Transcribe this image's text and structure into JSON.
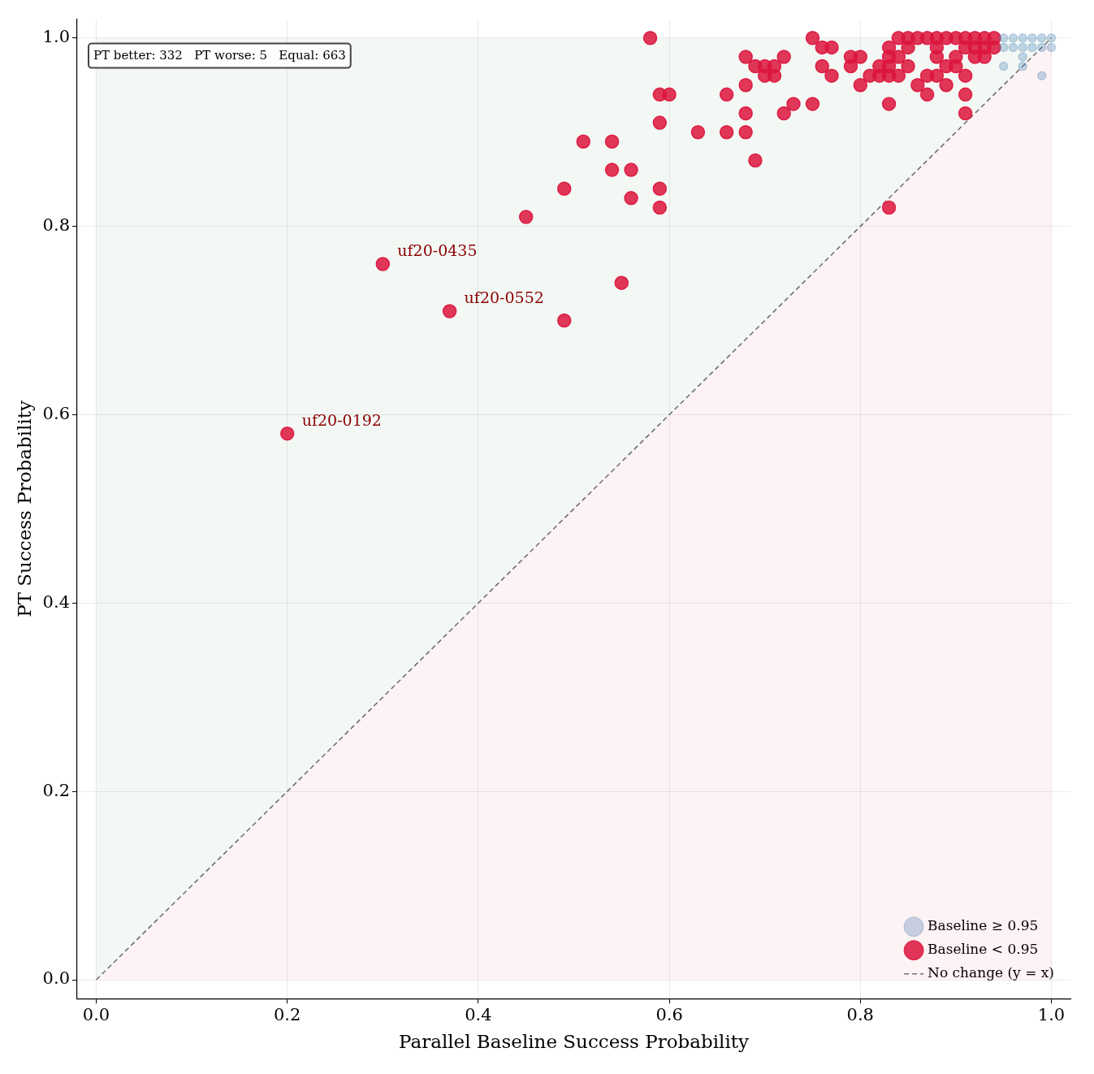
{
  "chart_data": {
    "type": "scatter",
    "xlabel": "Parallel Baseline Success Probability",
    "ylabel": "PT Success Probability",
    "xlim": [
      -0.02,
      1.02
    ],
    "ylim": [
      -0.02,
      1.02
    ],
    "xticks": [
      {
        "value": 0,
        "label": "0.0"
      },
      0.2,
      0.4,
      0.6,
      0.8,
      {
        "value": 1,
        "label": "1.0"
      }
    ],
    "yticks": [
      {
        "value": 0,
        "label": "0.0"
      },
      0.2,
      0.4,
      0.6,
      0.8,
      {
        "value": 1,
        "label": "1.0"
      }
    ],
    "grid": true,
    "legend": "bottom right",
    "marker": "circle",
    "series": [
      {
        "name": "Baseline ≥ 0.95",
        "color": "#4682b4",
        "x": [
          0.95,
          0.96,
          0.97,
          0.98,
          0.99,
          1.0,
          0.95,
          0.96,
          0.97,
          0.98,
          0.99,
          1.0,
          0.97,
          0.95,
          0.97,
          0.99
        ],
        "values": [
          1.0,
          1.0,
          1.0,
          1.0,
          1.0,
          1.0,
          0.99,
          0.99,
          0.99,
          0.99,
          0.99,
          0.99,
          0.98,
          0.97,
          0.97,
          0.96
        ]
      },
      {
        "name": "Baseline < 0.95",
        "color": "#dc143c",
        "x": [
          0.2,
          0.3,
          0.37,
          0.45,
          0.49,
          0.49,
          0.51,
          0.54,
          0.54,
          0.55,
          0.56,
          0.56,
          0.58,
          0.59,
          0.59,
          0.59,
          0.59,
          0.6,
          0.63,
          0.66,
          0.66,
          0.68,
          0.68,
          0.68,
          0.68,
          0.69,
          0.69,
          0.7,
          0.7,
          0.71,
          0.71,
          0.72,
          0.72,
          0.73,
          0.75,
          0.75,
          0.76,
          0.76,
          0.77,
          0.77,
          0.79,
          0.79,
          0.8,
          0.8,
          0.81,
          0.82,
          0.82,
          0.83,
          0.83,
          0.83,
          0.83,
          0.83,
          0.83,
          0.84,
          0.84,
          0.84,
          0.85,
          0.85,
          0.85,
          0.86,
          0.86,
          0.87,
          0.87,
          0.87,
          0.88,
          0.88,
          0.88,
          0.88,
          0.89,
          0.89,
          0.89,
          0.9,
          0.9,
          0.9,
          0.91,
          0.91,
          0.91,
          0.91,
          0.91,
          0.92,
          0.92,
          0.92,
          0.93,
          0.93,
          0.93,
          0.94,
          0.94
        ],
        "values": [
          0.58,
          0.76,
          0.71,
          0.81,
          0.84,
          0.7,
          0.89,
          0.89,
          0.86,
          0.74,
          0.86,
          0.83,
          1.0,
          0.94,
          0.91,
          0.84,
          0.82,
          0.94,
          0.9,
          0.94,
          0.9,
          0.98,
          0.95,
          0.92,
          0.9,
          0.97,
          0.87,
          0.97,
          0.96,
          0.97,
          0.96,
          0.98,
          0.92,
          0.93,
          1.0,
          0.93,
          0.99,
          0.97,
          0.99,
          0.96,
          0.98,
          0.97,
          0.98,
          0.95,
          0.96,
          0.97,
          0.96,
          0.99,
          0.98,
          0.97,
          0.96,
          0.93,
          0.82,
          1.0,
          0.98,
          0.96,
          1.0,
          0.99,
          0.97,
          1.0,
          0.95,
          1.0,
          0.96,
          0.94,
          1.0,
          0.99,
          0.98,
          0.96,
          1.0,
          0.97,
          0.95,
          1.0,
          0.98,
          0.97,
          1.0,
          0.99,
          0.96,
          0.94,
          0.92,
          1.0,
          0.99,
          0.98,
          1.0,
          0.99,
          0.98,
          1.0,
          0.99
        ]
      },
      {
        "name": "No change (y = x)",
        "type": "line",
        "line_style": "dashed",
        "marker": "none",
        "color": "#707070",
        "x": [
          0,
          1
        ],
        "values": [
          0,
          1
        ]
      }
    ],
    "annotations": [
      "PT better: 332   PT worse: 5   Equal: 663",
      {
        "text": "uf20-0435",
        "x": 0.3,
        "y": 0.76
      },
      {
        "text": "uf20-0552",
        "x": 0.37,
        "y": 0.71
      },
      {
        "text": "uf20-0192",
        "x": 0.2,
        "y": 0.58
      }
    ]
  }
}
